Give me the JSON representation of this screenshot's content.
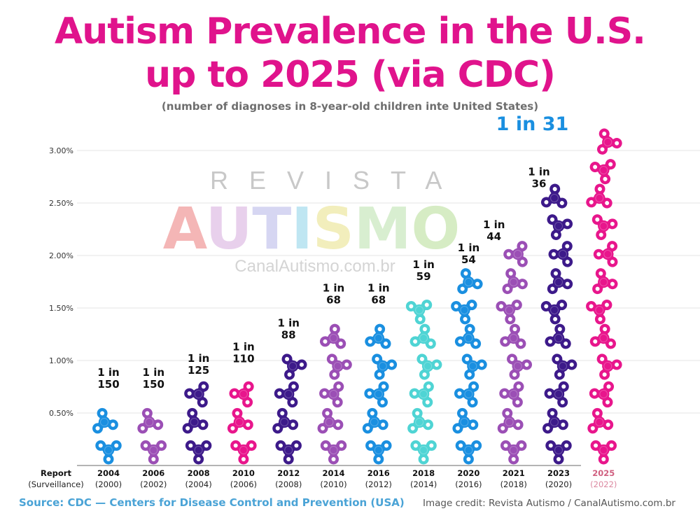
{
  "header": {
    "title_line1": "Autism Prevalence in the U.S.",
    "title_line2": "up to 2025 (via CDC)",
    "subtitle": "(number of diagnoses in 8-year-old children inte United States)"
  },
  "watermark": {
    "line1": "REVISTA",
    "line2": "AUTISMO",
    "line3": "CanalAutismo.com.br"
  },
  "footer": {
    "source": "Source: CDC — Centers for Disease Control and Prevention (USA)",
    "credit": "Image credit: Revista Autismo / CanalAutismo.com.br"
  },
  "chart_data": {
    "type": "bar",
    "title": "Autism Prevalence in the U.S. up to 2025 (via CDC)",
    "subtitle": "(number of diagnoses in 8-year-old children inte United States)",
    "xlabel": "Report (Surveillance)",
    "xlabel_line1": "Report",
    "xlabel_line2": "(Surveillance)",
    "ylabel": "",
    "ylim": [
      0,
      3.0
    ],
    "yticks": [
      "0.50%",
      "1.00%",
      "1.50%",
      "2.00%",
      "2.50%",
      "3.00%"
    ],
    "ytick_values": [
      0.5,
      1.0,
      1.5,
      2.0,
      2.5,
      3.0
    ],
    "grid": true,
    "categories": [
      "2004",
      "2006",
      "2008",
      "2010",
      "2012",
      "2014",
      "2016",
      "2018",
      "2020",
      "2021",
      "2023",
      "2025"
    ],
    "surveillance_years": [
      "(2000)",
      "(2002)",
      "(2004)",
      "(2006)",
      "(2008)",
      "(2010)",
      "(2012)",
      "(2014)",
      "(2016)",
      "(2018)",
      "(2020)",
      "(2022)"
    ],
    "ratios": [
      150,
      150,
      125,
      110,
      88,
      68,
      68,
      59,
      54,
      44,
      36,
      31
    ],
    "values": [
      0.667,
      0.667,
      0.8,
      0.909,
      1.136,
      1.471,
      1.471,
      1.695,
      1.852,
      2.273,
      2.778,
      3.226
    ],
    "labels": [
      "1 in 150",
      "1 in 150",
      "1 in 125",
      "1 in 110",
      "1 in 88",
      "1 in 68",
      "1 in 68",
      "1 in 59",
      "1 in 54",
      "1 in 44",
      "1 in 36",
      "1 in 31"
    ],
    "colors": [
      "#1a8fe0",
      "#9b4fb5",
      "#3d1a8a",
      "#e8168c",
      "#3d1a8a",
      "#9b4fb5",
      "#1a8fe0",
      "#4fd4d4",
      "#1a8fe0",
      "#9b4fb5",
      "#3d1a8a",
      "#e8168c"
    ],
    "highlight_color": "#1a8fe0",
    "last_category_color": "#d06080",
    "mark_style": "stacked fidget-spinner icons"
  }
}
